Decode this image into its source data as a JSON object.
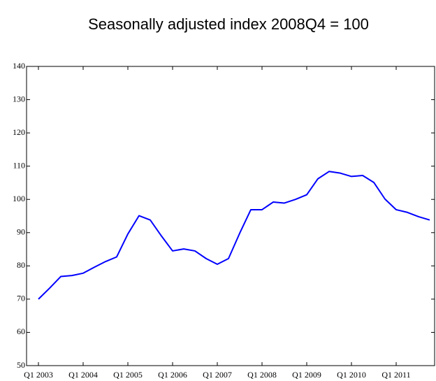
{
  "chart_data": {
    "type": "line",
    "title": "Seasonally adjusted index 2008Q4 = 100",
    "categories": [
      "Q1 2003",
      null,
      null,
      null,
      "Q1 2004",
      null,
      null,
      null,
      "Q1 2005",
      null,
      null,
      null,
      "Q1 2006",
      null,
      null,
      null,
      "Q1 2007",
      null,
      null,
      null,
      "Q1 2008",
      null,
      null,
      null,
      "Q1 2009",
      null,
      null,
      null,
      "Q1 2010",
      null,
      null,
      null,
      "Q1 2011",
      null,
      null,
      null
    ],
    "values": [
      70,
      73.3,
      76.8,
      77.1,
      77.8,
      79.6,
      81.3,
      82.7,
      89.6,
      95.1,
      93.8,
      89,
      84.5,
      85.1,
      84.5,
      82.2,
      80.5,
      82.2,
      89.8,
      96.9,
      96.9,
      99.2,
      98.9,
      100,
      101.4,
      106.2,
      108.4,
      107.9,
      106.9,
      107.2,
      105.1,
      100.1,
      96.9,
      96.1,
      94.8,
      93.8
    ],
    "color": "#0000ff",
    "ylim": [
      50,
      140
    ],
    "yticks": [
      50,
      60,
      70,
      80,
      90,
      100,
      110,
      120,
      130,
      140
    ]
  }
}
